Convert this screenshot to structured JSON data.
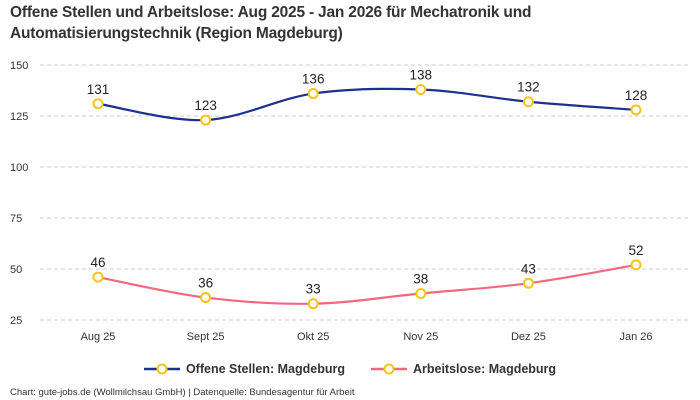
{
  "title": "Offene Stellen und Arbeitslose: Aug 2025 - Jan 2026 für Mechatronik und Automatisierungstechnik (Region Magdeburg)",
  "footer": "Chart: gute-jobs.de (Wollmilchsau GmbH) | Datenquelle: Bundesagentur für Arbeit",
  "chart_data": {
    "type": "line",
    "title": "Offene Stellen und Arbeitslose: Aug 2025 - Jan 2026 für Mechatronik und Automatisierungstechnik (Region Magdeburg)",
    "categories": [
      "Aug 25",
      "Sept 25",
      "Okt 25",
      "Nov 25",
      "Dez 25",
      "Jan 26"
    ],
    "yticks": [
      "25",
      "50",
      "75",
      "100",
      "125",
      "150"
    ],
    "ylim": [
      25,
      150
    ],
    "grid": true,
    "legend": "bottom",
    "series": [
      {
        "name": "Offene Stellen: Magdeburg",
        "values": [
          131,
          123,
          136,
          138,
          132,
          128
        ],
        "color": "#1f2f8f"
      },
      {
        "name": "Arbeitslose: Magdeburg",
        "values": [
          46,
          36,
          33,
          38,
          43,
          52
        ],
        "color": "#f4687f"
      }
    ],
    "marker_color": "#f5c518"
  }
}
